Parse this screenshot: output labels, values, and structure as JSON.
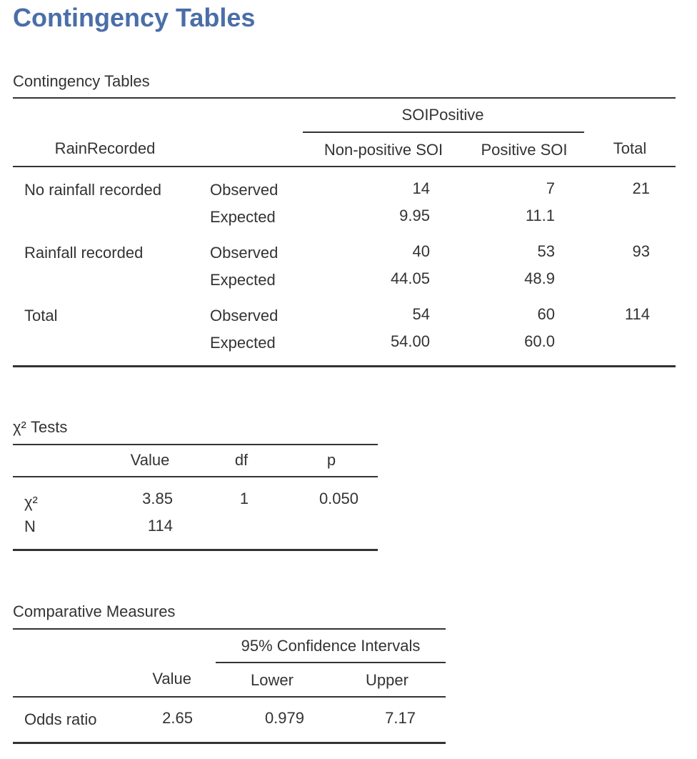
{
  "title": "Contingency Tables",
  "contingency_table": {
    "title": "Contingency Tables",
    "row_variable": "RainRecorded",
    "column_variable": "SOIPositive",
    "columns": [
      "Non-positive SOI",
      "Positive SOI",
      "Total"
    ],
    "statistic_labels": [
      "Observed",
      "Expected"
    ],
    "rows": [
      {
        "label": "No rainfall recorded",
        "observed": [
          "14",
          "7",
          "21"
        ],
        "expected": [
          "9.95",
          "11.1"
        ]
      },
      {
        "label": "Rainfall recorded",
        "observed": [
          "40",
          "53",
          "93"
        ],
        "expected": [
          "44.05",
          "48.9"
        ]
      },
      {
        "label": "Total",
        "observed": [
          "54",
          "60",
          "114"
        ],
        "expected": [
          "54.00",
          "60.0"
        ]
      }
    ]
  },
  "chi_square_tests": {
    "title": "χ² Tests",
    "columns": [
      "Value",
      "df",
      "p"
    ],
    "rows": [
      [
        "χ²",
        "3.85",
        "1",
        "0.050"
      ],
      [
        "N",
        "114"
      ]
    ]
  },
  "comparative_measures": {
    "title": "Comparative Measures",
    "ci_header": "95% Confidence Intervals",
    "columns": [
      "Value",
      "Lower",
      "Upper"
    ],
    "rows": [
      [
        "Odds ratio",
        "2.65",
        "0.979",
        "7.17"
      ]
    ]
  }
}
